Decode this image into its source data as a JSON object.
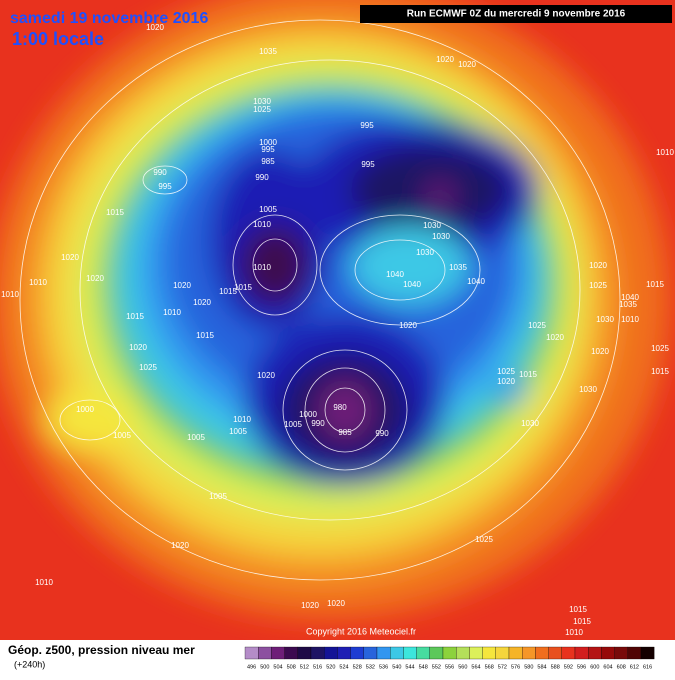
{
  "header": {
    "title": "samedi 19 novembre 2016",
    "subtitle": "1:00 locale",
    "run": "Run ECMWF 0Z du mercredi 9 novembre 2016"
  },
  "footer": {
    "title": "Géop. z500, pression niveau mer",
    "lead": "(+240h)",
    "copyright": "Copyright 2016 Meteociel.fr"
  },
  "legend": {
    "values": [
      496,
      500,
      504,
      508,
      512,
      516,
      520,
      524,
      528,
      532,
      536,
      540,
      544,
      548,
      552,
      556,
      560,
      564,
      568,
      572,
      576,
      580,
      584,
      588,
      592,
      596,
      600,
      604,
      608,
      612,
      616
    ],
    "colors": [
      "#b48cc8",
      "#8c50a0",
      "#6e1e78",
      "#3c0a50",
      "#1e0a46",
      "#1e1464",
      "#141496",
      "#1e1eb4",
      "#1e3cd2",
      "#2864dc",
      "#3296f0",
      "#3cc8e6",
      "#3ce6dc",
      "#46dca0",
      "#5cc85a",
      "#8cd23c",
      "#b4e05a",
      "#dcf05a",
      "#f5e63c",
      "#f5d63c",
      "#f5b428",
      "#f59628",
      "#f06e1e",
      "#e8501e",
      "#e8321e",
      "#d21e1e",
      "#b41414",
      "#960a0a",
      "#780a0a",
      "#500505",
      "#140000"
    ]
  },
  "isobar_labels": [
    1020,
    1035,
    1020,
    1020,
    1030,
    1025,
    995,
    1000,
    995,
    985,
    990,
    990,
    995,
    995,
    1005,
    1010,
    1015,
    1030,
    1030,
    1030,
    1010,
    1020,
    1010,
    1020,
    1020,
    1020,
    1015,
    1015,
    1040,
    1040,
    1035,
    1040,
    1020,
    1025,
    1010,
    1015,
    1010,
    1015,
    1020,
    1025,
    1020,
    1020,
    1025,
    1020,
    1030,
    1020,
    1025,
    1020,
    1015,
    1030,
    1000,
    1005,
    1000,
    980,
    1005,
    990,
    985,
    990,
    1010,
    1005,
    1005,
    1030,
    1005,
    1025,
    1020,
    1010,
    1020,
    1020,
    1015,
    1015,
    1010,
    1010,
    1015,
    1040,
    1035,
    1025,
    1015,
    1010
  ]
}
